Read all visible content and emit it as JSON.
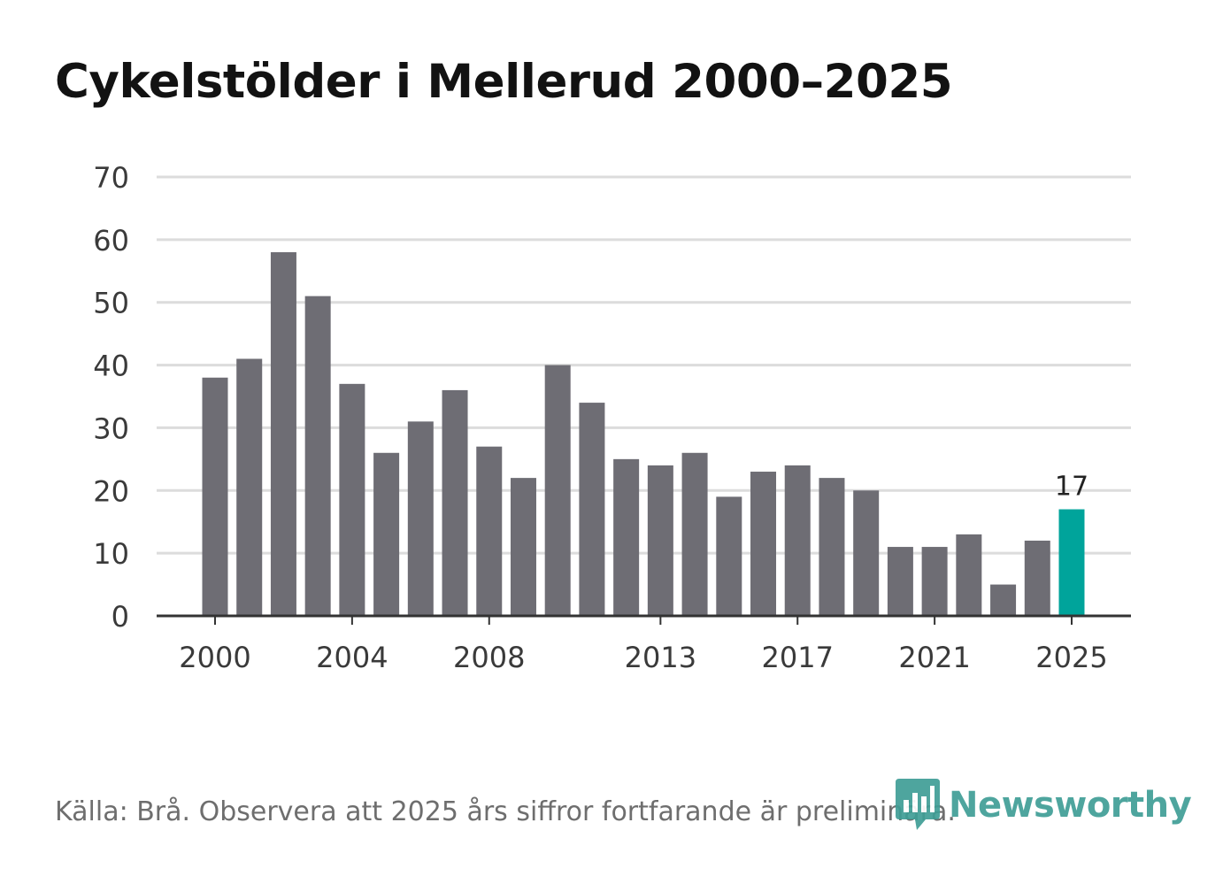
{
  "title": "Cykelstölder i Mellerud 2000–2025",
  "source": "Källa: Brå. Observera att 2025 års siffror fortfarande är preliminära.",
  "logo": {
    "text": "Newsworthy",
    "icon": "bar-chart-badge-icon"
  },
  "colors": {
    "bar": "#6e6d74",
    "highlight": "#00a49b",
    "grid": "#dcdcdc",
    "axis": "#333333"
  },
  "chart_data": {
    "type": "bar",
    "title": "Cykelstölder i Mellerud 2000–2025",
    "xlabel": "",
    "ylabel": "",
    "ylim": [
      0,
      70
    ],
    "yticks": [
      0,
      10,
      20,
      30,
      40,
      50,
      60,
      70
    ],
    "xticks": [
      "2000",
      "2004",
      "2008",
      "2013",
      "2017",
      "2021",
      "2025"
    ],
    "categories": [
      "2000",
      "2001",
      "2002",
      "2003",
      "2004",
      "2005",
      "2006",
      "2007",
      "2008",
      "2009",
      "2010",
      "2011",
      "2012",
      "2013",
      "2014",
      "2015",
      "2016",
      "2017",
      "2018",
      "2019",
      "2020",
      "2021",
      "2022",
      "2023",
      "2024",
      "2025"
    ],
    "values": [
      38,
      41,
      58,
      51,
      37,
      26,
      31,
      36,
      27,
      22,
      40,
      34,
      25,
      24,
      26,
      19,
      23,
      24,
      22,
      20,
      11,
      11,
      13,
      5,
      12,
      17
    ],
    "highlight": {
      "category": "2025",
      "label": "17"
    },
    "grid": true
  }
}
